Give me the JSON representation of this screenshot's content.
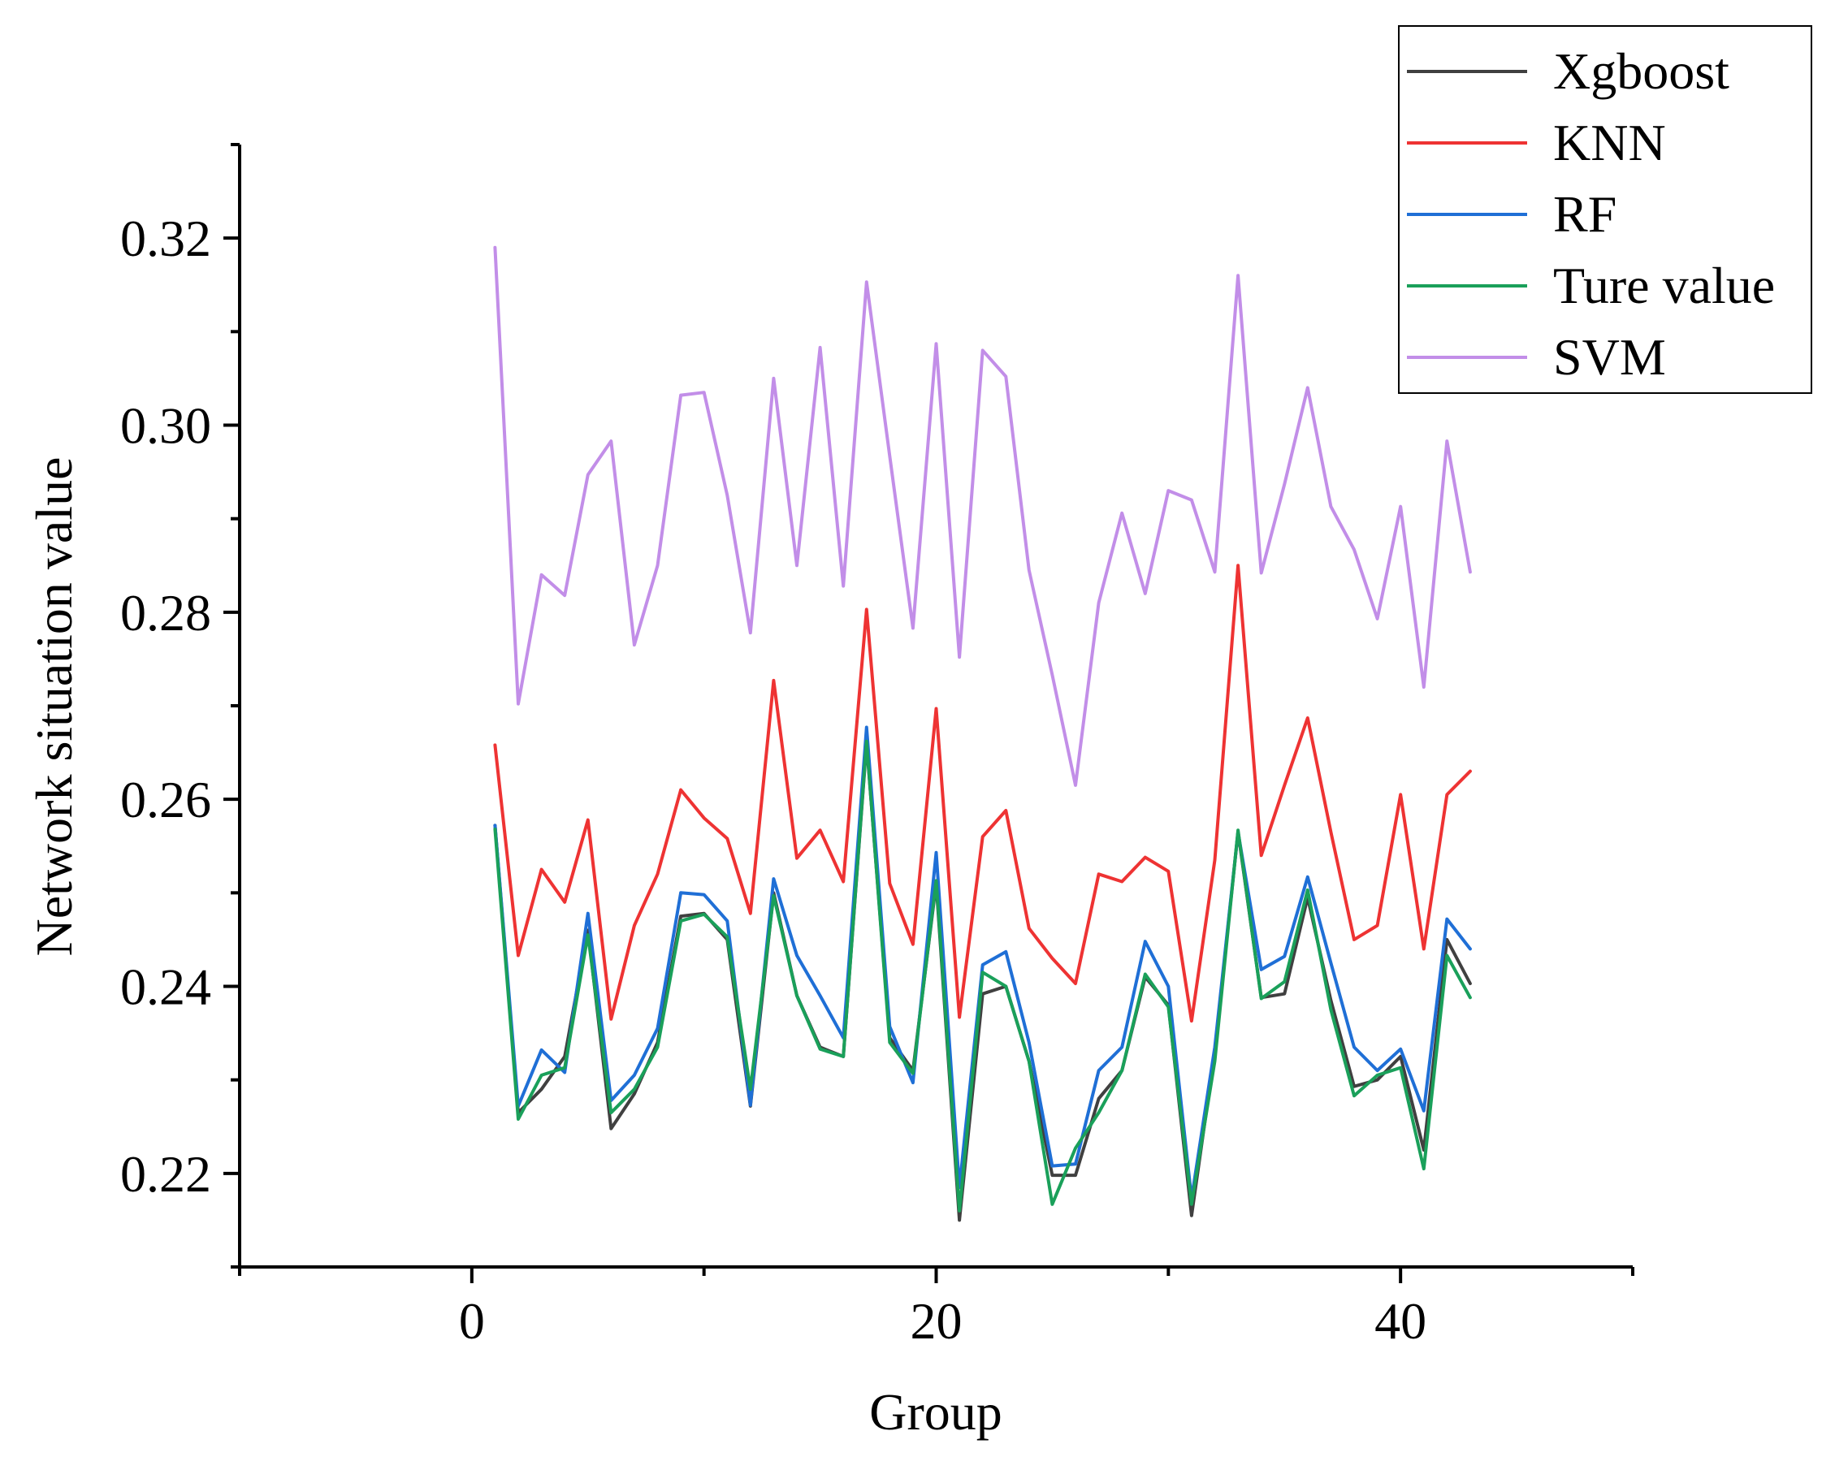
{
  "chart_data": {
    "type": "line",
    "title": "",
    "xlabel": "Group",
    "ylabel": "Network situation value",
    "xlim": [
      -10,
      50
    ],
    "ylim": [
      0.21,
      0.33
    ],
    "xticks": [
      0,
      20,
      40
    ],
    "xtick_labels": [
      "0",
      "20",
      "40"
    ],
    "yticks": [
      0.22,
      0.24,
      0.26,
      0.28,
      0.3,
      0.32
    ],
    "ytick_labels": [
      "0.22",
      "0.24",
      "0.26",
      "0.28",
      "0.30",
      "0.32"
    ],
    "legend_position": "top-right",
    "x": [
      1,
      2,
      3,
      4,
      5,
      6,
      7,
      8,
      9,
      10,
      11,
      12,
      13,
      14,
      15,
      16,
      17,
      18,
      19,
      20,
      21,
      22,
      23,
      24,
      25,
      26,
      27,
      28,
      29,
      30,
      31,
      32,
      33,
      34,
      35,
      36,
      37,
      38,
      39,
      40,
      41,
      42,
      43
    ],
    "series": [
      {
        "name": "Xgboost",
        "color": "#404040",
        "values": [
          0.2572,
          0.2265,
          0.229,
          0.2325,
          0.246,
          0.2248,
          0.2285,
          0.234,
          0.2475,
          0.2478,
          0.245,
          0.2272,
          0.25,
          0.239,
          0.2335,
          0.2325,
          0.266,
          0.2345,
          0.231,
          0.251,
          0.215,
          0.2392,
          0.24,
          0.232,
          0.2198,
          0.2198,
          0.228,
          0.231,
          0.241,
          0.238,
          0.2155,
          0.233,
          0.2565,
          0.2388,
          0.2392,
          0.2495,
          0.2385,
          0.2293,
          0.23,
          0.2325,
          0.2225,
          0.245,
          0.2403
        ]
      },
      {
        "name": "KNN",
        "color": "#ee3333",
        "values": [
          0.2658,
          0.2433,
          0.2525,
          0.249,
          0.2578,
          0.2365,
          0.2465,
          0.252,
          0.261,
          0.258,
          0.2558,
          0.2478,
          0.2727,
          0.2537,
          0.2567,
          0.2512,
          0.2803,
          0.251,
          0.2445,
          0.2697,
          0.2367,
          0.256,
          0.2588,
          0.2462,
          0.243,
          0.2403,
          0.252,
          0.2512,
          0.2538,
          0.2523,
          0.2363,
          0.2535,
          0.285,
          0.254,
          0.2615,
          0.2687,
          0.2565,
          0.245,
          0.2465,
          0.2605,
          0.244,
          0.2605,
          0.263
        ]
      },
      {
        "name": "RF",
        "color": "#1f6fd6",
        "values": [
          0.2572,
          0.2272,
          0.2332,
          0.2308,
          0.2478,
          0.2278,
          0.2305,
          0.2355,
          0.25,
          0.2498,
          0.247,
          0.2273,
          0.2515,
          0.2433,
          0.239,
          0.2345,
          0.2677,
          0.2357,
          0.2297,
          0.2543,
          0.2185,
          0.2423,
          0.2437,
          0.234,
          0.2208,
          0.221,
          0.231,
          0.2335,
          0.2448,
          0.24,
          0.2173,
          0.2335,
          0.2565,
          0.2418,
          0.2432,
          0.2517,
          0.2425,
          0.2335,
          0.231,
          0.2333,
          0.2267,
          0.2472,
          0.244
        ]
      },
      {
        "name": "Ture value",
        "color": "#1aa05a",
        "values": [
          0.2568,
          0.2258,
          0.2305,
          0.2313,
          0.2455,
          0.2265,
          0.229,
          0.2335,
          0.247,
          0.2477,
          0.2453,
          0.229,
          0.2497,
          0.239,
          0.2333,
          0.2325,
          0.2662,
          0.234,
          0.2307,
          0.2513,
          0.216,
          0.2415,
          0.24,
          0.232,
          0.2167,
          0.2227,
          0.2265,
          0.231,
          0.2413,
          0.2378,
          0.2167,
          0.232,
          0.2567,
          0.2387,
          0.2405,
          0.2503,
          0.2375,
          0.2283,
          0.2305,
          0.2313,
          0.2205,
          0.2433,
          0.2388
        ]
      },
      {
        "name": "SVM",
        "color": "#c28ee8",
        "values": [
          0.319,
          0.2702,
          0.284,
          0.2818,
          0.2947,
          0.2983,
          0.2765,
          0.285,
          0.3032,
          0.3035,
          0.2925,
          0.2778,
          0.305,
          0.285,
          0.3083,
          0.2828,
          0.3153,
          0.2967,
          0.2783,
          0.3087,
          0.2752,
          0.308,
          0.3052,
          0.2845,
          0.2733,
          0.2615,
          0.281,
          0.2906,
          0.282,
          0.293,
          0.292,
          0.2843,
          0.316,
          0.2842,
          0.2937,
          0.304,
          0.2913,
          0.2867,
          0.2793,
          0.2913,
          0.272,
          0.2983,
          0.2843
        ]
      }
    ]
  }
}
